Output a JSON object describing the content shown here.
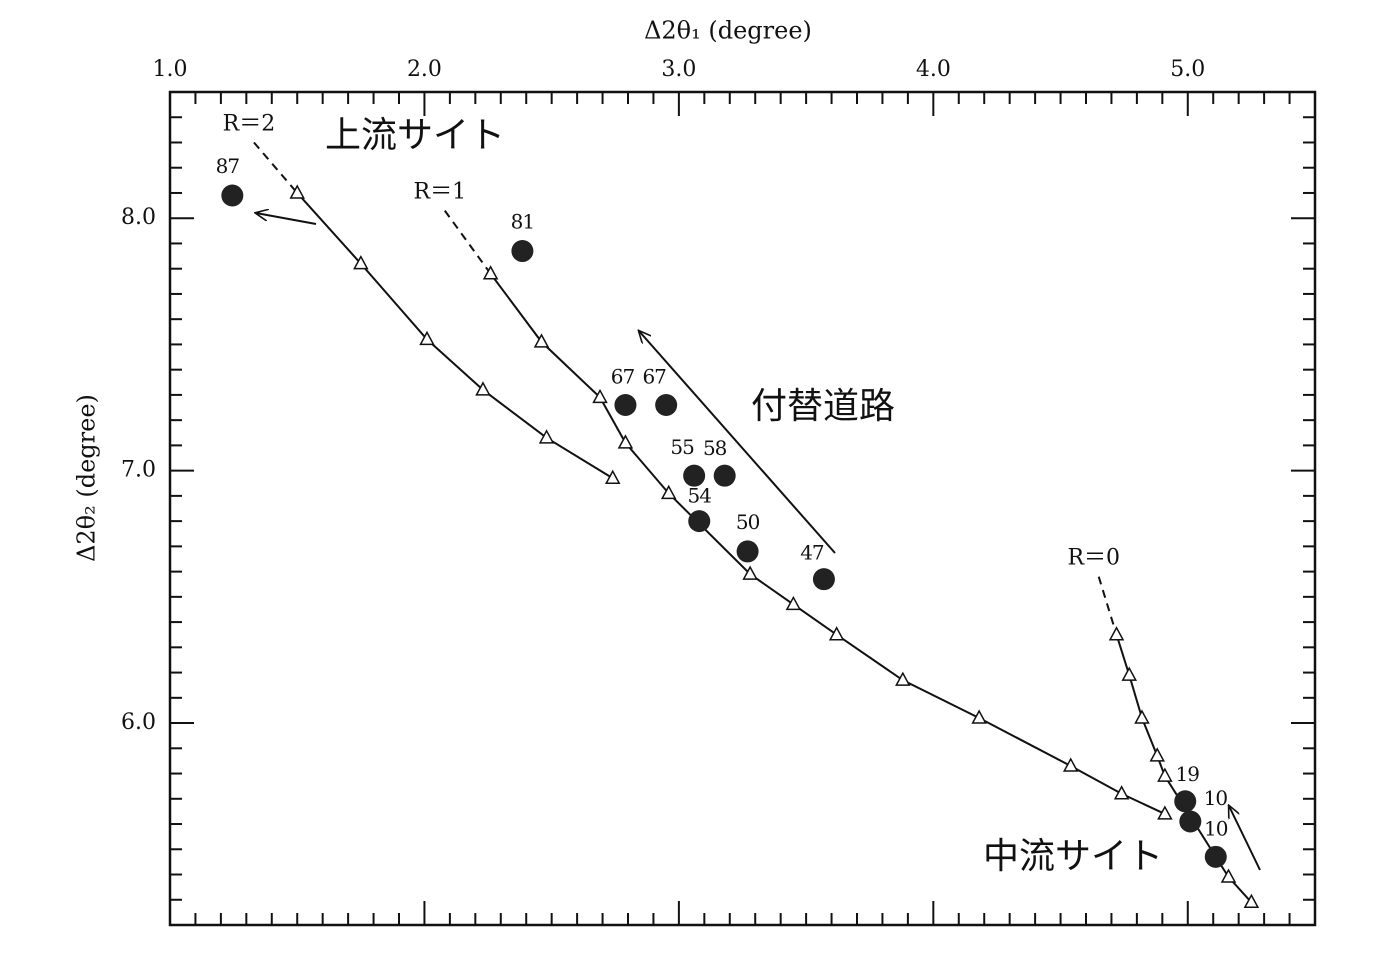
{
  "chart_data": {
    "type": "scatter",
    "x_label": "Δ2θ₁ (degree)",
    "y_label": "Δ2θ₂ (degree)",
    "xlim": [
      1.0,
      5.5
    ],
    "ylim": [
      5.2,
      8.5
    ],
    "xticks": [
      {
        "value": 1,
        "label": "1.0"
      },
      {
        "value": 2,
        "label": "2.0"
      },
      {
        "value": 3,
        "label": "3.0"
      },
      {
        "value": 4,
        "label": "4.0"
      },
      {
        "value": 5,
        "label": "5.0"
      }
    ],
    "yticks": [
      {
        "value": 6,
        "label": "6.0"
      },
      {
        "value": 7,
        "label": "7.0"
      },
      {
        "value": 8,
        "label": "8.0"
      }
    ],
    "xminorticks": [
      1.1,
      1.2,
      1.3,
      1.4,
      1.5,
      1.6,
      1.7,
      1.8,
      1.9,
      2.1,
      2.2,
      2.3,
      2.4,
      2.5,
      2.6,
      2.7,
      2.8,
      2.9,
      3.1,
      3.2,
      3.3,
      3.4,
      3.5,
      3.6,
      3.7,
      3.8,
      3.9,
      4.1,
      4.2,
      4.3,
      4.4,
      4.5,
      4.6,
      4.7,
      4.8,
      4.9,
      5.1,
      5.2,
      5.3,
      5.4
    ],
    "yminorticks": [
      5.3,
      5.4,
      5.5,
      5.6,
      5.7,
      5.8,
      5.9,
      6.1,
      6.2,
      6.3,
      6.4,
      6.5,
      6.6,
      6.7,
      6.8,
      6.9,
      7.1,
      7.2,
      7.3,
      7.4,
      7.5,
      7.6,
      7.7,
      7.8,
      7.9,
      8.1,
      8.2,
      8.3,
      8.4
    ],
    "series": [
      {
        "name": "R＝2",
        "color": "#111",
        "lead": [
          1.33,
          8.3
        ],
        "x": [
          1.5,
          1.75,
          2.01,
          2.23,
          2.48,
          2.74
        ],
        "y": [
          8.1,
          7.82,
          7.52,
          7.32,
          7.13,
          6.97
        ]
      },
      {
        "name": "R＝1",
        "color": "#111",
        "lead": [
          2.08,
          8.03
        ],
        "x": [
          2.26,
          2.46,
          2.69,
          2.79,
          2.96,
          3.28,
          3.45,
          3.62,
          3.88,
          4.18,
          4.54,
          4.74,
          4.91
        ],
        "y": [
          7.78,
          7.51,
          7.29,
          7.11,
          6.91,
          6.59,
          6.47,
          6.35,
          6.17,
          6.02,
          5.83,
          5.72,
          5.64
        ]
      },
      {
        "name": "R＝0",
        "color": "#111",
        "lead": [
          4.65,
          6.58
        ],
        "x": [
          4.72,
          4.77,
          4.82,
          4.88,
          4.91,
          5.16,
          5.25
        ],
        "y": [
          6.35,
          6.19,
          6.02,
          5.87,
          5.79,
          5.39,
          5.29
        ]
      }
    ],
    "points": {
      "color": "#222",
      "x": [
        1.245,
        2.385,
        2.79,
        2.95,
        3.06,
        3.18,
        3.08,
        3.27,
        3.57,
        4.99,
        5.01,
        5.11
      ],
      "y": [
        8.09,
        7.87,
        7.26,
        7.26,
        6.98,
        6.98,
        6.8,
        6.68,
        6.57,
        5.69,
        5.61,
        5.47
      ],
      "labels": [
        "87",
        "81",
        "67",
        "67",
        "55",
        "58",
        "54",
        "50",
        "47",
        "19",
        "10",
        "10"
      ]
    },
    "annotations": [
      "上流サイト",
      "付替道路",
      "中流サイト"
    ]
  }
}
